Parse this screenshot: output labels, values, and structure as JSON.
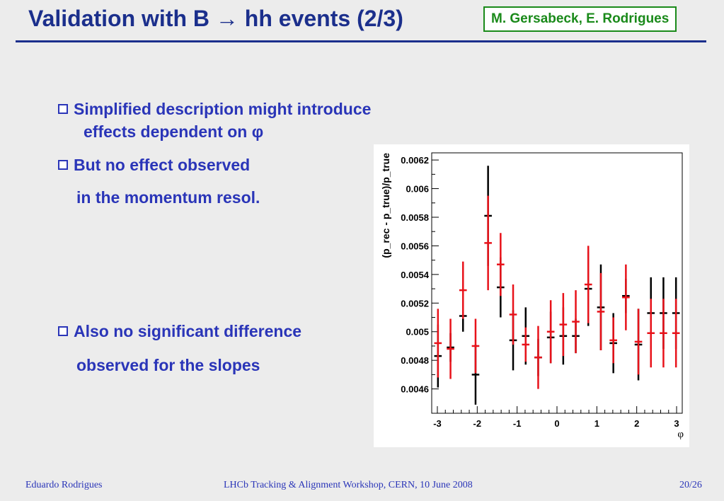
{
  "header": {
    "title": "Validation with B → hh events (2/3)",
    "authors": "M. Gersabeck, E. Rodrigues"
  },
  "bullets": [
    {
      "line1": "Simplified description might introduce",
      "line2": "effects dependent on φ"
    },
    {
      "line1": "But no effect observed",
      "line2": "in the momentum resol."
    },
    {
      "line1": "Also no significant difference",
      "line2": "observed for the slopes"
    }
  ],
  "footer": {
    "author": "Eduardo Rodrigues",
    "event": "LHCb Tracking & Alignment Workshop, CERN, 10 June 2008",
    "page": "20/26"
  },
  "chart_data": {
    "type": "scatter",
    "xlabel": "φ",
    "ylabel": "(p_rec - p_true)/p_true",
    "xlim": [
      -3.14159,
      3.14159
    ],
    "ylim": [
      0.00443,
      0.00625
    ],
    "xticks": [
      "-3",
      "-2",
      "-1",
      "0",
      "1",
      "2",
      "3"
    ],
    "yticks": [
      "0.0046",
      "0.0048",
      "0.005",
      "0.0052",
      "0.0054",
      "0.0056",
      "0.0058",
      "0.006",
      "0.0062"
    ],
    "bin_half_width": 0.157,
    "grid": false,
    "legend": "none",
    "series": [
      {
        "color": "#000000",
        "points": [
          {
            "x": -2.985,
            "y": 0.00483,
            "err": 0.00022
          },
          {
            "x": -2.67,
            "y": 0.00489,
            "err": 0.0001
          },
          {
            "x": -2.356,
            "y": 0.00511,
            "err": 0.00011
          },
          {
            "x": -2.042,
            "y": 0.0047,
            "err": 0.00021
          },
          {
            "x": -1.728,
            "y": 0.00581,
            "err": 0.00035
          },
          {
            "x": -1.414,
            "y": 0.00531,
            "err": 0.00021
          },
          {
            "x": -1.1,
            "y": 0.00494,
            "err": 0.00021
          },
          {
            "x": -0.785,
            "y": 0.00497,
            "err": 0.0002
          },
          {
            "x": -0.471,
            "y": 0.00482,
            "err": 0.00013
          },
          {
            "x": -0.157,
            "y": 0.00496,
            "err": 0.00018
          },
          {
            "x": 0.157,
            "y": 0.00497,
            "err": 0.0002
          },
          {
            "x": 0.471,
            "y": 0.00497,
            "err": 0.00012
          },
          {
            "x": 0.785,
            "y": 0.0053,
            "err": 0.00026
          },
          {
            "x": 1.1,
            "y": 0.00517,
            "err": 0.0003
          },
          {
            "x": 1.414,
            "y": 0.00492,
            "err": 0.00021
          },
          {
            "x": 1.728,
            "y": 0.00525,
            "err": 0.00012
          },
          {
            "x": 2.042,
            "y": 0.00491,
            "err": 0.00025
          },
          {
            "x": 2.356,
            "y": 0.00513,
            "err": 0.00025
          },
          {
            "x": 2.67,
            "y": 0.00513,
            "err": 0.00025
          },
          {
            "x": 2.985,
            "y": 0.00513,
            "err": 0.00025
          }
        ]
      },
      {
        "color": "#e8121a",
        "points": [
          {
            "x": -2.985,
            "y": 0.00492,
            "err": 0.00024
          },
          {
            "x": -2.67,
            "y": 0.00488,
            "err": 0.00021
          },
          {
            "x": -2.356,
            "y": 0.00529,
            "err": 0.0002
          },
          {
            "x": -2.042,
            "y": 0.0049,
            "err": 0.00019
          },
          {
            "x": -1.728,
            "y": 0.00562,
            "err": 0.00033
          },
          {
            "x": -1.414,
            "y": 0.00547,
            "err": 0.00022
          },
          {
            "x": -1.1,
            "y": 0.00512,
            "err": 0.00021
          },
          {
            "x": -0.785,
            "y": 0.00491,
            "err": 0.00012
          },
          {
            "x": -0.471,
            "y": 0.00482,
            "err": 0.00022
          },
          {
            "x": -0.157,
            "y": 0.005,
            "err": 0.00022
          },
          {
            "x": 0.157,
            "y": 0.00505,
            "err": 0.00022
          },
          {
            "x": 0.471,
            "y": 0.00507,
            "err": 0.00022
          },
          {
            "x": 0.785,
            "y": 0.00533,
            "err": 0.00027
          },
          {
            "x": 1.1,
            "y": 0.00514,
            "err": 0.00027
          },
          {
            "x": 1.414,
            "y": 0.00494,
            "err": 0.00016
          },
          {
            "x": 1.728,
            "y": 0.00524,
            "err": 0.00023
          },
          {
            "x": 2.042,
            "y": 0.00493,
            "err": 0.00023
          },
          {
            "x": 2.356,
            "y": 0.00499,
            "err": 0.00024
          },
          {
            "x": 2.67,
            "y": 0.00499,
            "err": 0.00024
          },
          {
            "x": 2.985,
            "y": 0.00499,
            "err": 0.00024
          }
        ]
      }
    ]
  }
}
